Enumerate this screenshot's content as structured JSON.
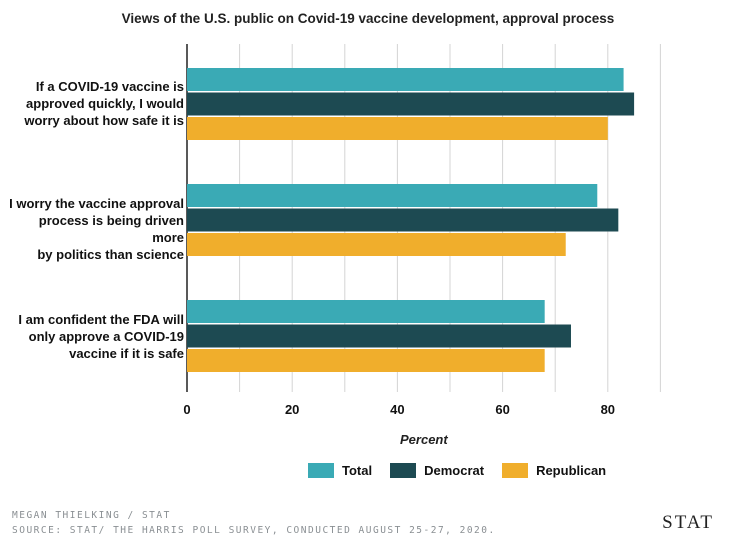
{
  "title": "Views of the U.S. public on Covid-19 vaccine development, approval process",
  "chart_data": {
    "type": "bar",
    "orientation": "horizontal",
    "categories": [
      "If a COVID-19 vaccine is approved quickly, I would worry about how safe it is",
      "I worry the vaccine approval process is being driven more by politics than science",
      "I am confident the FDA will only approve a COVID-19 vaccine if it is safe"
    ],
    "series": [
      {
        "name": "Total",
        "color": "#3aaab5",
        "values": [
          83,
          78,
          68
        ]
      },
      {
        "name": "Democrat",
        "color": "#1d4a52",
        "values": [
          85,
          82,
          73
        ]
      },
      {
        "name": "Republican",
        "color": "#f0ae2c",
        "values": [
          80,
          72,
          68
        ]
      }
    ],
    "xlim": [
      0,
      100
    ],
    "xticks": [
      0,
      20,
      40,
      60,
      80
    ],
    "xlabel": "Percent",
    "grid": true,
    "legend_position": "bottom"
  },
  "labels": {
    "cat0": [
      "If a COVID-19 vaccine is",
      "approved quickly, I would",
      "worry about how safe it is"
    ],
    "cat1": [
      "I worry the vaccine approval",
      "process is being driven more",
      "by politics than science"
    ],
    "cat2": [
      "I am confident the FDA will",
      "only approve a COVID-19",
      "vaccine if it is safe"
    ]
  },
  "footer": {
    "credit": "MEGAN THIELKING / STAT",
    "source": "SOURCE: STAT/ THE HARRIS POLL SURVEY, CONDUCTED AUGUST 25-27, 2020.",
    "logo": "STAT"
  }
}
